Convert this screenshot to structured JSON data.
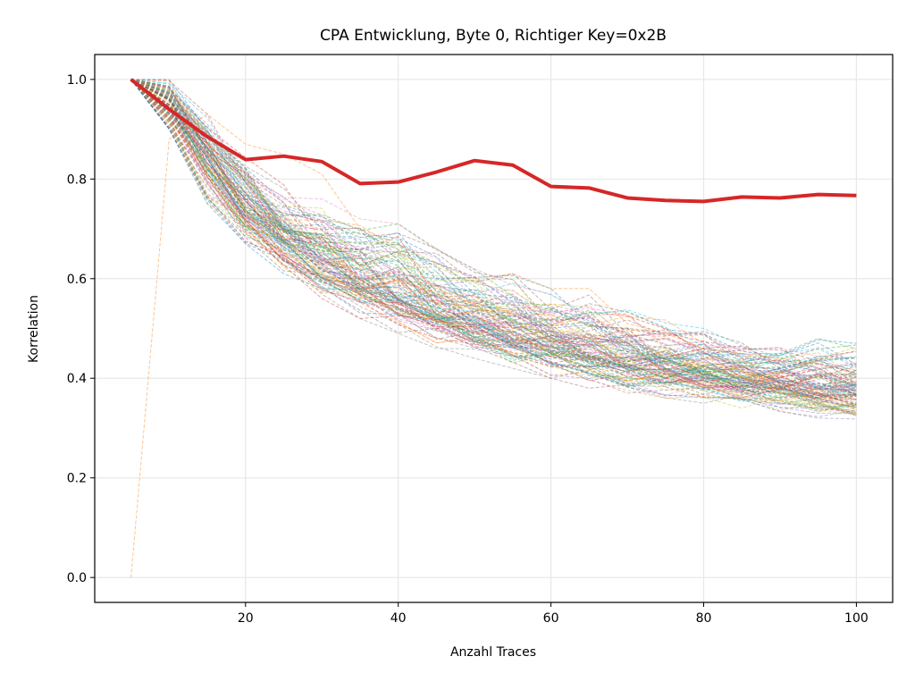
{
  "chart_data": {
    "type": "line",
    "title": "CPA Entwicklung, Byte 0, Richtiger Key=0x2B",
    "xlabel": "Anzahl Traces",
    "ylabel": "Korrelation",
    "xlim": [
      0.25,
      104.75
    ],
    "ylim": [
      -0.05,
      1.05
    ],
    "xticks": [
      20,
      40,
      60,
      80,
      100
    ],
    "yticks": [
      0.0,
      0.2,
      0.4,
      0.6,
      0.8,
      1.0
    ],
    "xtick_labels": [
      "20",
      "40",
      "60",
      "80",
      "100"
    ],
    "ytick_labels": [
      "0.0",
      "0.2",
      "0.4",
      "0.6",
      "0.8",
      "1.0"
    ],
    "grid": true,
    "x": [
      5,
      10,
      15,
      20,
      25,
      30,
      35,
      40,
      45,
      50,
      55,
      60,
      65,
      70,
      75,
      80,
      85,
      90,
      95,
      100
    ],
    "correct_key_series": {
      "color": "#d62728",
      "values": [
        1.0,
        0.94,
        0.885,
        0.839,
        0.846,
        0.835,
        0.791,
        0.794,
        0.814,
        0.837,
        0.828,
        0.785,
        0.782,
        0.762,
        0.757,
        0.755,
        0.764,
        0.762,
        0.769,
        0.767
      ]
    },
    "wrong_keys_band": {
      "count": 255,
      "style": "dashed, thin, semi-transparent, matplotlib tab10 cycle",
      "mean": [
        1.0,
        0.95,
        0.84,
        0.74,
        0.68,
        0.63,
        0.59,
        0.56,
        0.53,
        0.51,
        0.49,
        0.47,
        0.45,
        0.43,
        0.42,
        0.41,
        0.4,
        0.39,
        0.38,
        0.375
      ],
      "min": [
        1.0,
        0.9,
        0.75,
        0.67,
        0.61,
        0.56,
        0.52,
        0.49,
        0.46,
        0.44,
        0.42,
        0.4,
        0.38,
        0.37,
        0.36,
        0.35,
        0.34,
        0.33,
        0.32,
        0.31
      ],
      "max": [
        1.0,
        1.0,
        0.93,
        0.87,
        0.79,
        0.76,
        0.72,
        0.71,
        0.66,
        0.62,
        0.61,
        0.58,
        0.58,
        0.55,
        0.52,
        0.5,
        0.48,
        0.47,
        0.48,
        0.47
      ]
    },
    "outlier_series": {
      "color": "#ff7f0e",
      "values": [
        0.0,
        0.88,
        0.93,
        0.87,
        0.85,
        0.81,
        0.7,
        0.67,
        0.63,
        0.6,
        0.61,
        0.58,
        0.58,
        0.51,
        0.49,
        0.46,
        0.45,
        0.44,
        0.43,
        0.4
      ]
    },
    "palette": [
      "#1f77b4",
      "#ff7f0e",
      "#2ca02c",
      "#d62728",
      "#9467bd",
      "#8c564b",
      "#e377c2",
      "#7f7f7f",
      "#bcbd22",
      "#17becf"
    ]
  }
}
